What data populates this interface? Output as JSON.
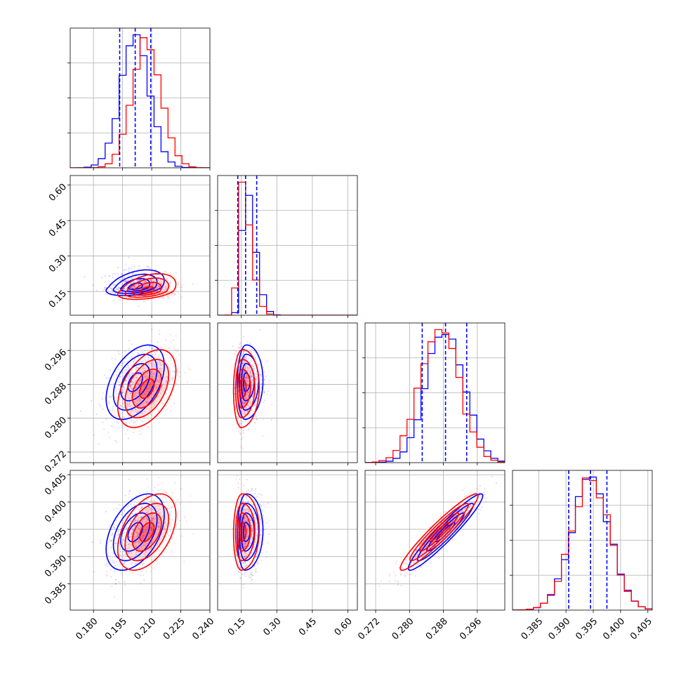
{
  "colors": {
    "blue": "#0000ff",
    "red": "#ff0000",
    "grid": "#b0b0b0"
  },
  "chart_data": {
    "type": "corner",
    "parameters": [
      {
        "range": [
          0.168,
          0.24
        ],
        "ticks": [
          0.18,
          0.195,
          0.21,
          0.225,
          0.24
        ],
        "tick_labels": [
          "0.180",
          "0.195",
          "0.210",
          "0.225",
          "0.240"
        ]
      },
      {
        "range": [
          0.05,
          0.64
        ],
        "ticks": [
          0.15,
          0.3,
          0.45,
          0.6
        ],
        "tick_labels": [
          "0.15",
          "0.30",
          "0.45",
          "0.60"
        ]
      },
      {
        "range": [
          0.2695,
          0.3025
        ],
        "ticks": [
          0.272,
          0.28,
          0.288,
          0.296
        ],
        "tick_labels": [
          "0.272",
          "0.280",
          "0.288",
          "0.296"
        ]
      },
      {
        "range": [
          0.3802,
          0.4058
        ],
        "ticks": [
          0.385,
          0.39,
          0.395,
          0.4,
          0.405
        ],
        "tick_labels": [
          "0.385",
          "0.390",
          "0.395",
          "0.400",
          "0.405"
        ]
      }
    ],
    "series": [
      {
        "name": "",
        "color": "#0000ff",
        "mean": [
          0.2015,
          0.168,
          0.2885,
          0.3945
        ],
        "sd": [
          0.0075,
          0.035,
          0.0044,
          0.0035
        ],
        "corr": [
          [
            1,
            0.4,
            0.45,
            0.45
          ],
          [
            0.4,
            1,
            0.05,
            0.05
          ],
          [
            0.45,
            0.05,
            1,
            0.95
          ],
          [
            0.45,
            0.05,
            0.95,
            1
          ]
        ]
      },
      {
        "name": "",
        "color": "#ff0000",
        "mean": [
          0.2075,
          0.152,
          0.287,
          0.3945
        ],
        "sd": [
          0.0075,
          0.035,
          0.0046,
          0.0035
        ],
        "corr": [
          [
            1,
            0.4,
            0.45,
            0.45
          ],
          [
            0.4,
            1,
            0.05,
            0.05
          ],
          [
            0.45,
            0.05,
            1,
            0.95
          ],
          [
            0.45,
            0.05,
            0.95,
            1
          ]
        ]
      }
    ],
    "quantiles": [
      {
        "values": [
          0.1935,
          0.2015,
          0.2095
        ]
      },
      {
        "values": [
          0.135,
          0.168,
          0.215
        ]
      },
      {
        "values": [
          0.283,
          0.2885,
          0.2935
        ]
      },
      {
        "values": [
          0.3905,
          0.3945,
          0.3975
        ]
      }
    ],
    "grid": true,
    "yticklabels_on_diagonal": false
  }
}
